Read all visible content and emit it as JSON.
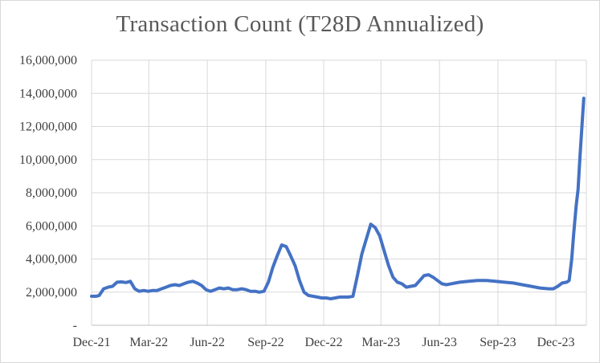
{
  "chart_data": {
    "type": "line",
    "title": "Transaction Count (T28D Annualized)",
    "xlabel": "",
    "ylabel": "",
    "x_tick_labels": [
      "Dec-21",
      "Mar-22",
      "Jun-22",
      "Sep-22",
      "Dec-22",
      "Mar-23",
      "Jun-23",
      "Sep-23",
      "Dec-23"
    ],
    "y_tick_labels": [
      "-",
      "2,000,000",
      "4,000,000",
      "6,000,000",
      "8,000,000",
      "10,000,000",
      "12,000,000",
      "14,000,000",
      "16,000,000"
    ],
    "ylim": [
      0,
      16000000
    ],
    "grid": true,
    "legend": "none",
    "series": [
      {
        "color": "#4472c4",
        "x": [
          "2021-12-01",
          "2021-12-08",
          "2021-12-13",
          "2021-12-20",
          "2021-12-27",
          "2022-01-03",
          "2022-01-10",
          "2022-01-17",
          "2022-01-24",
          "2022-01-31",
          "2022-02-07",
          "2022-02-14",
          "2022-02-21",
          "2022-02-28",
          "2022-03-07",
          "2022-03-14",
          "2022-03-21",
          "2022-03-28",
          "2022-04-04",
          "2022-04-11",
          "2022-04-18",
          "2022-04-25",
          "2022-05-02",
          "2022-05-09",
          "2022-05-16",
          "2022-05-23",
          "2022-05-30",
          "2022-06-06",
          "2022-06-13",
          "2022-06-20",
          "2022-06-27",
          "2022-07-04",
          "2022-07-11",
          "2022-07-18",
          "2022-07-25",
          "2022-08-01",
          "2022-08-08",
          "2022-08-15",
          "2022-08-22",
          "2022-08-29",
          "2022-09-05",
          "2022-09-12",
          "2022-09-19",
          "2022-09-26",
          "2022-10-03",
          "2022-10-10",
          "2022-10-17",
          "2022-10-24",
          "2022-10-31",
          "2022-11-07",
          "2022-11-14",
          "2022-11-21",
          "2022-11-28",
          "2022-12-05",
          "2022-12-12",
          "2022-12-19",
          "2022-12-26",
          "2023-01-02",
          "2023-01-09",
          "2023-01-16",
          "2023-01-23",
          "2023-01-30",
          "2023-02-06",
          "2023-02-13",
          "2023-02-20",
          "2023-02-27",
          "2023-03-06",
          "2023-03-13",
          "2023-03-20",
          "2023-03-27",
          "2023-04-03",
          "2023-04-10",
          "2023-04-17",
          "2023-04-24",
          "2023-05-01",
          "2023-05-08",
          "2023-05-15",
          "2023-05-22",
          "2023-05-29",
          "2023-06-05",
          "2023-06-12",
          "2023-06-19",
          "2023-06-26",
          "2023-07-03",
          "2023-07-17",
          "2023-07-31",
          "2023-08-14",
          "2023-08-28",
          "2023-09-11",
          "2023-09-25",
          "2023-10-09",
          "2023-10-23",
          "2023-11-06",
          "2023-11-20",
          "2023-11-27",
          "2023-12-04",
          "2023-12-11",
          "2023-12-18",
          "2023-12-22",
          "2023-12-26",
          "2023-12-29",
          "2024-01-02",
          "2024-01-05",
          "2024-01-08",
          "2024-01-11",
          "2024-01-14"
        ],
        "y": [
          1750000,
          1750000,
          1800000,
          2200000,
          2300000,
          2350000,
          2600000,
          2620000,
          2580000,
          2650000,
          2200000,
          2050000,
          2100000,
          2050000,
          2100000,
          2100000,
          2200000,
          2300000,
          2400000,
          2450000,
          2400000,
          2500000,
          2600000,
          2650000,
          2550000,
          2400000,
          2150000,
          2050000,
          2150000,
          2250000,
          2200000,
          2250000,
          2150000,
          2150000,
          2200000,
          2150000,
          2050000,
          2050000,
          2000000,
          2050000,
          2600000,
          3500000,
          4200000,
          4850000,
          4750000,
          4200000,
          3600000,
          2700000,
          2000000,
          1800000,
          1750000,
          1700000,
          1650000,
          1650000,
          1600000,
          1650000,
          1700000,
          1700000,
          1700000,
          1750000,
          3000000,
          4300000,
          5200000,
          6100000,
          5900000,
          5400000,
          4500000,
          3600000,
          2900000,
          2600000,
          2500000,
          2300000,
          2350000,
          2400000,
          2700000,
          3000000,
          3050000,
          2900000,
          2700000,
          2500000,
          2450000,
          2500000,
          2550000,
          2600000,
          2650000,
          2700000,
          2700000,
          2650000,
          2600000,
          2550000,
          2450000,
          2350000,
          2250000,
          2200000,
          2200000,
          2350000,
          2550000,
          2600000,
          2700000,
          4000000,
          5500000,
          7200000,
          8200000,
          10200000,
          12000000,
          13700000
        ]
      }
    ]
  }
}
